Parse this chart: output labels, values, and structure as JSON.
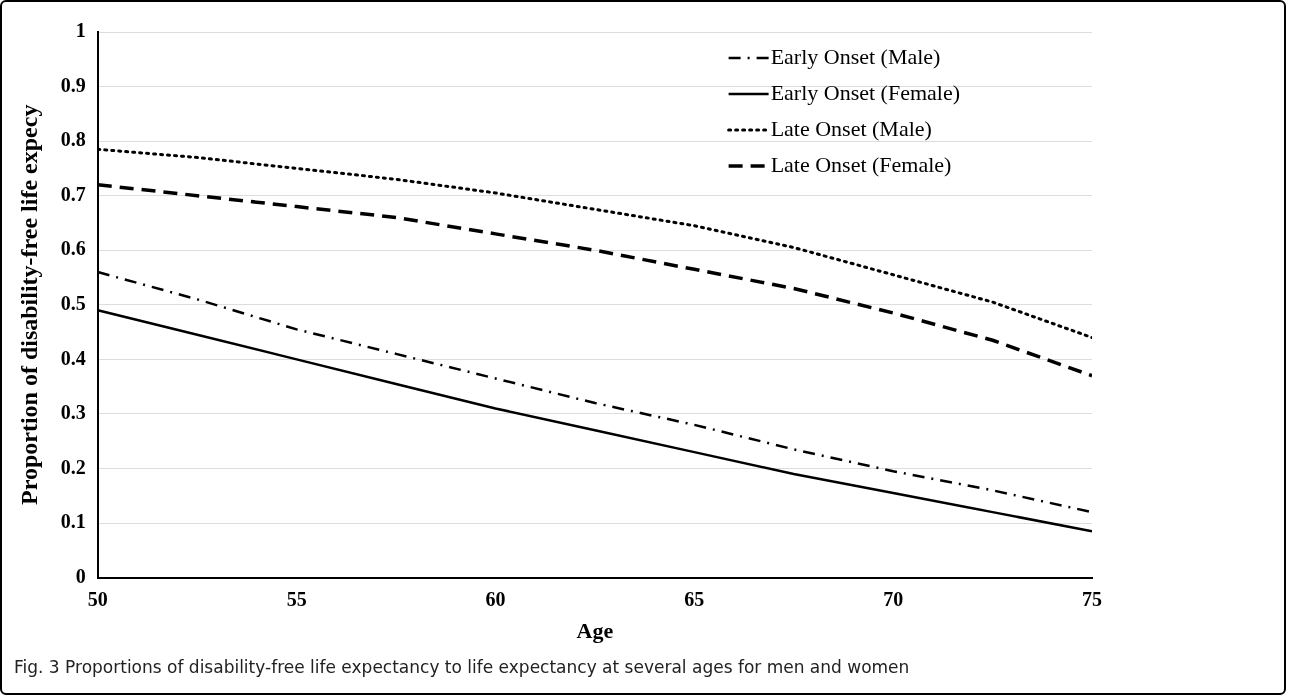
{
  "chart_data": {
    "type": "line",
    "xlabel": "Age",
    "ylabel": "Proportion of disability-free life expecy",
    "x": [
      50,
      52.5,
      55,
      57.5,
      60,
      62.5,
      65,
      67.5,
      70,
      72.5,
      75
    ],
    "series": [
      {
        "name": "Early Onset (Male)",
        "color": "#000000",
        "line_style": "dashdot",
        "values": [
          0.56,
          0.51,
          0.455,
          0.41,
          0.365,
          0.32,
          0.28,
          0.235,
          0.195,
          0.16,
          0.12
        ]
      },
      {
        "name": "Early Onset (Female)",
        "color": "#000000",
        "line_style": "solid",
        "values": [
          0.49,
          0.445,
          0.4,
          0.355,
          0.31,
          0.27,
          0.23,
          0.19,
          0.155,
          0.12,
          0.085
        ]
      },
      {
        "name": "Late Onset (Male)",
        "color": "#000000",
        "line_style": "dotted",
        "values": [
          0.785,
          0.77,
          0.75,
          0.73,
          0.705,
          0.675,
          0.645,
          0.605,
          0.555,
          0.505,
          0.44
        ]
      },
      {
        "name": "Late Onset (Female)",
        "color": "#000000",
        "line_style": "dashed",
        "values": [
          0.72,
          0.7,
          0.68,
          0.66,
          0.63,
          0.6,
          0.565,
          0.53,
          0.485,
          0.435,
          0.37
        ]
      }
    ],
    "xlim": [
      50,
      75
    ],
    "xticks": [
      50,
      55,
      60,
      65,
      70,
      75
    ],
    "ylim": [
      0,
      1
    ],
    "yticks": [
      0,
      0.1,
      0.2,
      0.3,
      0.4,
      0.5,
      0.6,
      0.7,
      0.8,
      0.9,
      1
    ],
    "grid": "y",
    "legend": "top right",
    "marker": "none",
    "annotations": [
      "Fig. 3 Proportions of disability-free life expectancy to life expectancy at several ages for men and women"
    ]
  }
}
